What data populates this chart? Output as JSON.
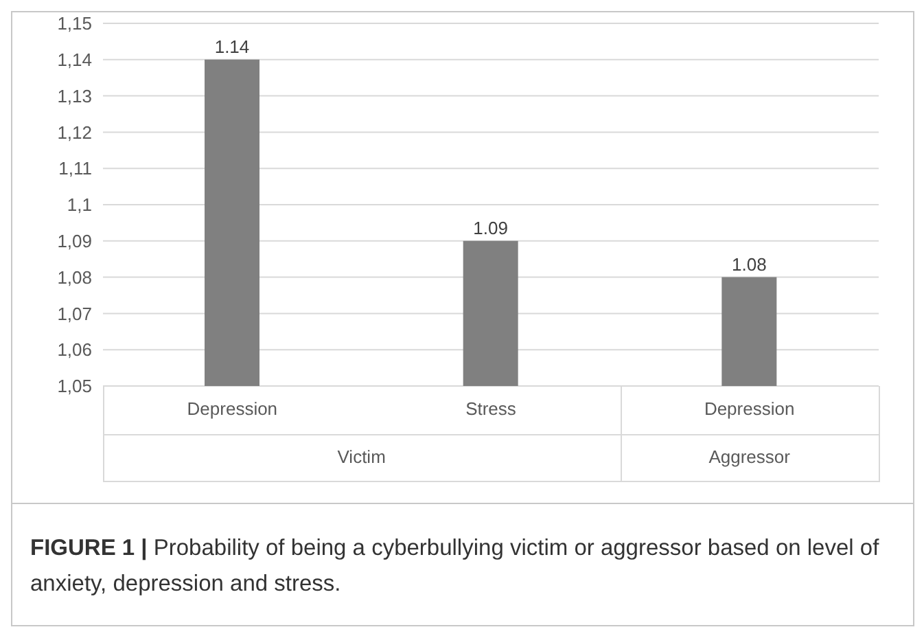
{
  "chart_data": {
    "type": "bar",
    "categories": [
      "Depression",
      "Stress",
      "Depression"
    ],
    "values": [
      1.14,
      1.09,
      1.08
    ],
    "color": "#808080",
    "data_labels": true,
    "ylim": [
      1.05,
      1.15
    ],
    "yticks": [
      {
        "value": 1.05,
        "label": "1,05"
      },
      {
        "value": 1.06,
        "label": "1,06"
      },
      {
        "value": 1.07,
        "label": "1,07"
      },
      {
        "value": 1.08,
        "label": "1,08"
      },
      {
        "value": 1.09,
        "label": "1,09"
      },
      {
        "value": 1.1,
        "label": "1,1"
      },
      {
        "value": 1.11,
        "label": "1,11"
      },
      {
        "value": 1.12,
        "label": "1,12"
      },
      {
        "value": 1.13,
        "label": "1,13"
      },
      {
        "value": 1.14,
        "label": "1,14"
      },
      {
        "value": 1.15,
        "label": "1,15"
      }
    ],
    "grid": "y",
    "annotations": [
      "Victim",
      "Aggressor",
      "FIGURE 1 | Probability of being a cyberbullying victim or aggressor based on level of anxiety, depression and stress."
    ]
  }
}
